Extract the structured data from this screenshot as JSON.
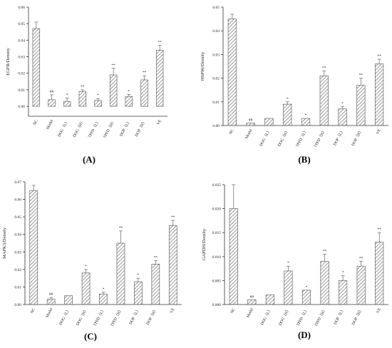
{
  "chart_data": [
    {
      "type": "bar",
      "panel": "(A)",
      "ylabel": "EGFR/Density",
      "categories": [
        "NC",
        "Model",
        "DOG（L）",
        "DOG（H）",
        "TPFD（L）",
        "TPFD（H）",
        "DOP（L）",
        "DOP（H）",
        "VE"
      ],
      "values": [
        0.047,
        0.004,
        0.003,
        0.009,
        0.0035,
        0.019,
        0.006,
        0.016,
        0.034
      ],
      "errors": [
        0.004,
        0.003,
        0.002,
        0.001,
        0.0012,
        0.004,
        0.0012,
        0.0025,
        0.003
      ],
      "significance": [
        "",
        "##",
        "*",
        "**",
        "*",
        "**",
        "*",
        "**",
        "**"
      ],
      "ylim": [
        0,
        0.06
      ],
      "yticks": [
        "0.00",
        "0.01",
        "0.02",
        "0.03",
        "0.04",
        "0.05",
        "0.06"
      ],
      "yticks_values": [
        0,
        0.01,
        0.02,
        0.03,
        0.04,
        0.05,
        0.06
      ],
      "ymin": -0.006
    },
    {
      "type": "bar",
      "panel": "(B)",
      "ylabel": "HSP90/Density",
      "categories": [
        "NC",
        "Model",
        "DOG（L）",
        "DOG（H）",
        "TPFD（L）",
        "TPFD（H）",
        "DOP（L）",
        "DOP（H）",
        "VE"
      ],
      "values": [
        0.045,
        0.001,
        0.003,
        0.009,
        0.003,
        0.021,
        0.007,
        0.017,
        0.026
      ],
      "errors": [
        0.002,
        0.0,
        0.0,
        0.001,
        0.0,
        0.002,
        0.001,
        0.003,
        0.002
      ],
      "significance": [
        "",
        "##",
        "",
        "*",
        "*",
        "**",
        "*",
        "**",
        "**"
      ],
      "ylim": [
        0,
        0.05
      ],
      "yticks": [
        "0.00",
        "0.01",
        "0.02",
        "0.03",
        "0.04",
        "0.05"
      ],
      "yticks_values": [
        0,
        0.01,
        0.02,
        0.03,
        0.04,
        0.05
      ],
      "ymin": 0
    },
    {
      "type": "bar",
      "panel": "(C)",
      "ylabel": "MAPK3/Density",
      "categories": [
        "NC",
        "Model",
        "DOG（L）",
        "DOG（H）",
        "TPFD（L）",
        "TPFD（H）",
        "DOP（L）",
        "DOP（H）",
        "VE"
      ],
      "values": [
        0.065,
        0.003,
        0.005,
        0.018,
        0.006,
        0.035,
        0.013,
        0.023,
        0.045
      ],
      "errors": [
        0.003,
        0.001,
        0.0,
        0.002,
        0.001,
        0.007,
        0.002,
        0.002,
        0.003
      ],
      "significance": [
        "",
        "##",
        "",
        "*",
        "*",
        "**",
        "*",
        "**",
        "**"
      ],
      "ylim": [
        0,
        0.07
      ],
      "yticks": [
        "0.00",
        "0.01",
        "0.02",
        "0.03",
        "0.04",
        "0.05",
        "0.06",
        "0.07"
      ],
      "yticks_values": [
        0,
        0.01,
        0.02,
        0.03,
        0.04,
        0.05,
        0.06,
        0.07
      ],
      "ymin": 0
    },
    {
      "type": "bar",
      "panel": "(D)",
      "ylabel": "GAPDH/Density",
      "categories": [
        "NC",
        "Model",
        "DOG（L）",
        "DOG（H）",
        "TPFD（L）",
        "TPFD（H）",
        "DOP（L）",
        "DOP（H）",
        "VE"
      ],
      "values": [
        0.02,
        0.001,
        0.002,
        0.007,
        0.003,
        0.009,
        0.005,
        0.008,
        0.013
      ],
      "errors": [
        0.005,
        0.0,
        0.0,
        0.001,
        0.0,
        0.0015,
        0.001,
        0.001,
        0.002
      ],
      "significance": [
        "",
        "##",
        "",
        "*",
        "*",
        "**",
        "*",
        "**",
        "**"
      ],
      "ylim": [
        0,
        0.025
      ],
      "yticks": [
        "0.000",
        "0.005",
        "0.010",
        "0.015",
        "0.020",
        "0.025"
      ],
      "yticks_values": [
        0,
        0.005,
        0.01,
        0.015,
        0.02,
        0.025
      ],
      "ymin": 0
    }
  ],
  "panels": {
    "a": {
      "label": "(A)"
    },
    "b": {
      "label": "(B)"
    },
    "c": {
      "label": "(C)"
    },
    "d": {
      "label": "(D)"
    }
  },
  "style": {
    "bar_stroke": "#666666",
    "hatch_color": "#888888",
    "axis_color": "#333333"
  }
}
